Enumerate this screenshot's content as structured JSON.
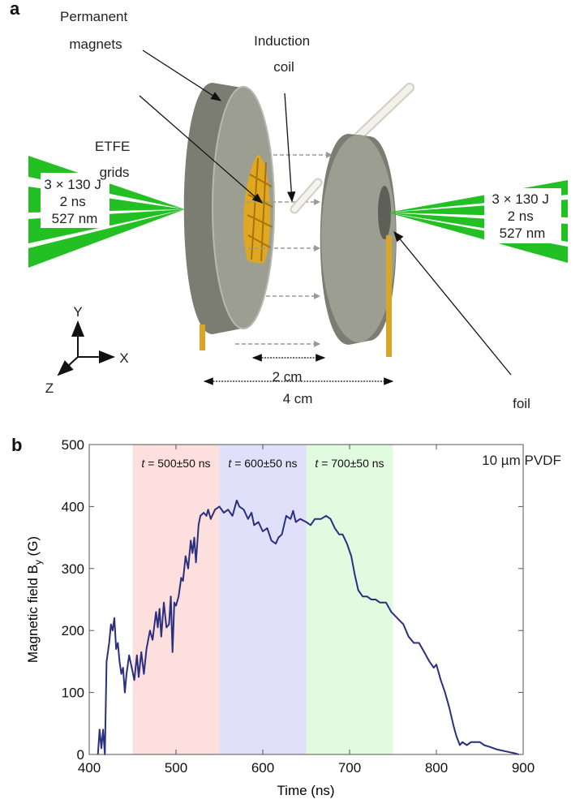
{
  "panel_a": {
    "panel_label": "a",
    "labels": {
      "magnets": [
        "Permanent",
        "magnets"
      ],
      "coil": [
        "Induction",
        "coil"
      ],
      "grids": [
        "ETFE",
        "grids"
      ],
      "laser_left": [
        "3 × 130 J",
        "2 ns",
        "527 nm"
      ],
      "laser_right": [
        "3 × 130 J",
        "2 ns",
        "527 nm"
      ],
      "foil": [
        "10 µm PVDF",
        "foil"
      ],
      "gap": "2 cm",
      "span": "4 cm",
      "axis_x": "X",
      "axis_y": "Y",
      "axis_z": "Z"
    },
    "colors": {
      "magnet": "#9a9b8e",
      "laser": "#22c022",
      "grid": "#e0a820",
      "rod": "#d9a526",
      "coil": "#e8e8e0"
    }
  },
  "panel_b": {
    "panel_label": "b",
    "chart_data": {
      "type": "line",
      "xlabel": "Time (ns)",
      "ylabel_parts": [
        "Magnetic field B",
        "y",
        " (G)"
      ],
      "xlim": [
        400,
        900
      ],
      "ylim": [
        0,
        500
      ],
      "xticks": [
        400,
        500,
        600,
        700,
        800,
        900
      ],
      "yticks": [
        0,
        100,
        200,
        300,
        400,
        500
      ],
      "grid": false,
      "line_color": "#2a2f80",
      "bands": [
        {
          "label_t": "t",
          "label_rest": " = 500±50 ns",
          "range": [
            450,
            550
          ],
          "color": "#fde0de"
        },
        {
          "label_t": "t",
          "label_rest": " = 600±50 ns",
          "range": [
            550,
            650
          ],
          "color": "#e0e0fb"
        },
        {
          "label_t": "t",
          "label_rest": " = 700±50 ns",
          "range": [
            650,
            750
          ],
          "color": "#e0fbe0"
        }
      ],
      "x": [
        410,
        412,
        414,
        416,
        418,
        420,
        423,
        425,
        427,
        429,
        431,
        433,
        435,
        437,
        439,
        441,
        443,
        446,
        449,
        452,
        455,
        457,
        460,
        463,
        466,
        470,
        473,
        477,
        479,
        481,
        483,
        486,
        489,
        492,
        494,
        496,
        498,
        500,
        503,
        506,
        508,
        511,
        514,
        517,
        519,
        521,
        523,
        526,
        528,
        532,
        535,
        537,
        540,
        545,
        550,
        555,
        560,
        565,
        570,
        573,
        578,
        583,
        587,
        590,
        595,
        600,
        605,
        610,
        615,
        618,
        622,
        627,
        632,
        635,
        638,
        643,
        650,
        655,
        660,
        667,
        673,
        678,
        683,
        688,
        692,
        697,
        702,
        706,
        710,
        715,
        720,
        725,
        730,
        735,
        742,
        748,
        755,
        762,
        768,
        774,
        780,
        786,
        792,
        797,
        800,
        805,
        810,
        815,
        820,
        823,
        827,
        830,
        835,
        840,
        845,
        850,
        855,
        862,
        870,
        880,
        890,
        895
      ],
      "y": [
        0,
        40,
        10,
        40,
        0,
        150,
        180,
        210,
        200,
        220,
        170,
        180,
        150,
        130,
        140,
        100,
        130,
        160,
        140,
        120,
        160,
        125,
        165,
        130,
        170,
        200,
        185,
        230,
        205,
        235,
        190,
        245,
        205,
        210,
        255,
        165,
        245,
        240,
        255,
        285,
        280,
        320,
        300,
        345,
        325,
        350,
        310,
        370,
        385,
        390,
        385,
        395,
        380,
        395,
        400,
        390,
        395,
        385,
        410,
        400,
        395,
        380,
        390,
        370,
        375,
        360,
        365,
        345,
        340,
        350,
        355,
        385,
        380,
        393,
        375,
        380,
        375,
        370,
        380,
        380,
        385,
        380,
        365,
        355,
        355,
        340,
        320,
        290,
        265,
        255,
        255,
        250,
        250,
        245,
        245,
        230,
        220,
        210,
        190,
        180,
        180,
        165,
        150,
        140,
        145,
        120,
        100,
        75,
        45,
        30,
        15,
        20,
        15,
        20,
        20,
        20,
        15,
        12,
        8,
        5,
        2,
        0
      ]
    }
  }
}
